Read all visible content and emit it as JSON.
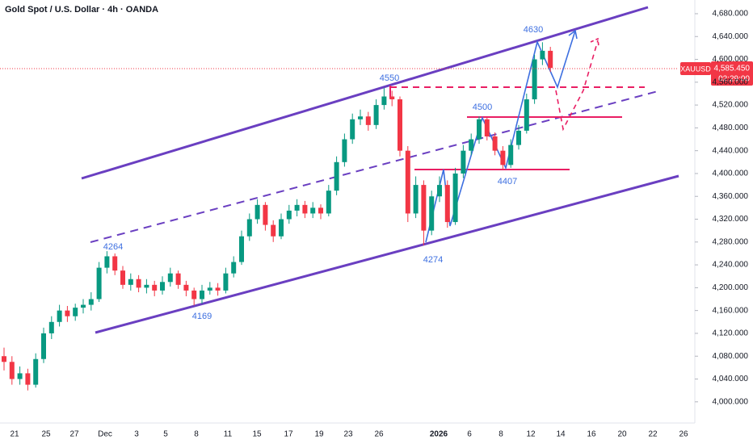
{
  "chart_data": {
    "type": "candlestick",
    "title": "Gold Spot / U.S. Dollar · 4h · OANDA",
    "symbol": "XAUUSD",
    "last_price": {
      "value": 4585.45,
      "label": "4,585.450"
    },
    "countdown": "02:29:00",
    "up_color": "#089981",
    "down_color": "#f23645",
    "ylim": [
      3970,
      4704
    ],
    "yticks": [
      {
        "value": 4000,
        "label": "4,000.000"
      },
      {
        "value": 4040,
        "label": "4,040.000"
      },
      {
        "value": 4080,
        "label": "4,080.000"
      },
      {
        "value": 4120,
        "label": "4,120.000"
      },
      {
        "value": 4160,
        "label": "4,160.000"
      },
      {
        "value": 4200,
        "label": "4,200.000"
      },
      {
        "value": 4240,
        "label": "4,240.000"
      },
      {
        "value": 4280,
        "label": "4,280.000"
      },
      {
        "value": 4320,
        "label": "4,320.000"
      },
      {
        "value": 4360,
        "label": "4,360.000"
      },
      {
        "value": 4400,
        "label": "4,400.000"
      },
      {
        "value": 4440,
        "label": "4,440.000"
      },
      {
        "value": 4480,
        "label": "4,480.000"
      },
      {
        "value": 4520,
        "label": "4,520.000"
      },
      {
        "value": 4560,
        "label": "4,560.000"
      },
      {
        "value": 4600,
        "label": "4,600.000"
      },
      {
        "value": 4640,
        "label": "4,640.000"
      },
      {
        "value": 4680,
        "label": "4,680.000"
      }
    ],
    "x_labels": [
      "21",
      "25",
      "27",
      "Dec",
      "3",
      "5",
      "8",
      "11",
      "15",
      "17",
      "19",
      "23",
      "26",
      "2026",
      "6",
      "8",
      "12",
      "14",
      "16",
      "20",
      "22",
      "26"
    ],
    "annotations": [
      "4264",
      "4169",
      "4550",
      "4274",
      "4500",
      "4407",
      "4630"
    ],
    "candles": [
      [
        4080,
        4095,
        4055,
        4070
      ],
      [
        4070,
        4080,
        4030,
        4040
      ],
      [
        4040,
        4062,
        4030,
        4050
      ],
      [
        4050,
        4058,
        4020,
        4030
      ],
      [
        4030,
        4085,
        4025,
        4075
      ],
      [
        4075,
        4130,
        4068,
        4120
      ],
      [
        4120,
        4150,
        4110,
        4140
      ],
      [
        4140,
        4170,
        4132,
        4160
      ],
      [
        4160,
        4168,
        4140,
        4150
      ],
      [
        4150,
        4172,
        4142,
        4165
      ],
      [
        4165,
        4180,
        4155,
        4170
      ],
      [
        4170,
        4192,
        4160,
        4180
      ],
      [
        4180,
        4245,
        4175,
        4235
      ],
      [
        4235,
        4264,
        4225,
        4255
      ],
      [
        4255,
        4260,
        4222,
        4230
      ],
      [
        4230,
        4238,
        4198,
        4205
      ],
      [
        4205,
        4225,
        4195,
        4215
      ],
      [
        4215,
        4222,
        4192,
        4200
      ],
      [
        4200,
        4215,
        4190,
        4205
      ],
      [
        4205,
        4212,
        4185,
        4195
      ],
      [
        4195,
        4220,
        4188,
        4210
      ],
      [
        4210,
        4235,
        4202,
        4225
      ],
      [
        4225,
        4230,
        4198,
        4205
      ],
      [
        4205,
        4212,
        4185,
        4195
      ],
      [
        4195,
        4200,
        4169,
        4180
      ],
      [
        4180,
        4205,
        4172,
        4195
      ],
      [
        4195,
        4210,
        4188,
        4200
      ],
      [
        4200,
        4208,
        4186,
        4195
      ],
      [
        4195,
        4235,
        4190,
        4225
      ],
      [
        4225,
        4255,
        4218,
        4245
      ],
      [
        4245,
        4300,
        4240,
        4290
      ],
      [
        4290,
        4330,
        4282,
        4320
      ],
      [
        4320,
        4355,
        4312,
        4345
      ],
      [
        4345,
        4350,
        4300,
        4310
      ],
      [
        4310,
        4318,
        4280,
        4290
      ],
      [
        4290,
        4330,
        4285,
        4320
      ],
      [
        4320,
        4345,
        4312,
        4335
      ],
      [
        4335,
        4355,
        4325,
        4345
      ],
      [
        4345,
        4352,
        4322,
        4330
      ],
      [
        4330,
        4350,
        4322,
        4340
      ],
      [
        4340,
        4346,
        4320,
        4330
      ],
      [
        4330,
        4380,
        4325,
        4370
      ],
      [
        4370,
        4430,
        4362,
        4420
      ],
      [
        4420,
        4470,
        4412,
        4460
      ],
      [
        4460,
        4505,
        4452,
        4495
      ],
      [
        4495,
        4512,
        4485,
        4500
      ],
      [
        4500,
        4508,
        4475,
        4485
      ],
      [
        4485,
        4530,
        4478,
        4520
      ],
      [
        4520,
        4550,
        4512,
        4535
      ],
      [
        4535,
        4545,
        4518,
        4530
      ],
      [
        4530,
        4535,
        4430,
        4440
      ],
      [
        4440,
        4448,
        4315,
        4330
      ],
      [
        4330,
        4395,
        4322,
        4380
      ],
      [
        4380,
        4388,
        4274,
        4300
      ],
      [
        4300,
        4370,
        4292,
        4360
      ],
      [
        4360,
        4395,
        4350,
        4380
      ],
      [
        4380,
        4388,
        4305,
        4315
      ],
      [
        4315,
        4410,
        4310,
        4400
      ],
      [
        4400,
        4450,
        4392,
        4440
      ],
      [
        4440,
        4470,
        4432,
        4460
      ],
      [
        4460,
        4500,
        4452,
        4495
      ],
      [
        4495,
        4498,
        4458,
        4465
      ],
      [
        4465,
        4472,
        4432,
        4440
      ],
      [
        4440,
        4448,
        4407,
        4415
      ],
      [
        4415,
        4460,
        4410,
        4450
      ],
      [
        4450,
        4485,
        4442,
        4475
      ],
      [
        4475,
        4540,
        4470,
        4530
      ],
      [
        4530,
        4608,
        4522,
        4600
      ],
      [
        4600,
        4630,
        4590,
        4615
      ],
      [
        4615,
        4622,
        4578,
        4585
      ]
    ]
  }
}
